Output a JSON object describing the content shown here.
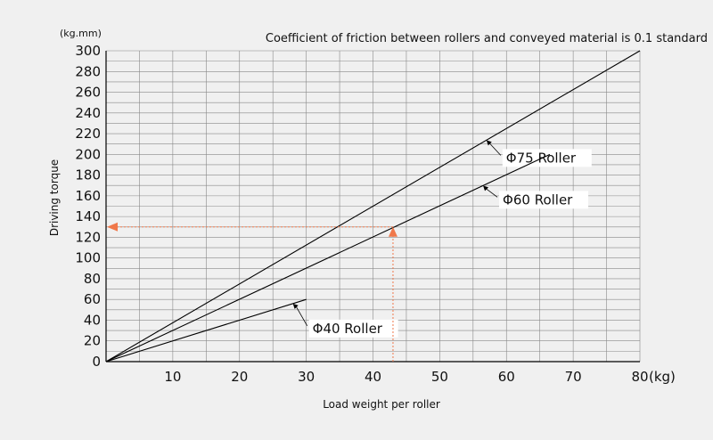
{
  "chart_data": {
    "type": "line",
    "title": "Coefficient of friction between rollers and conveyed material is 0.1 standard",
    "xlabel": "Load weight per roller",
    "ylabel": "Driving torque",
    "y_unit": "(kg.mm)",
    "x_unit": "(kg)",
    "xlim": [
      0,
      80
    ],
    "ylim": [
      0,
      300
    ],
    "x_ticks": [
      10,
      20,
      30,
      40,
      50,
      60,
      70,
      80
    ],
    "x_tick_labels": [
      "10",
      "20",
      "30",
      "40",
      "50",
      "60",
      "70",
      "80"
    ],
    "y_ticks": [
      0,
      20,
      40,
      60,
      80,
      100,
      120,
      140,
      160,
      180,
      200,
      220,
      240,
      260,
      280,
      300
    ],
    "y_tick_labels": [
      "0",
      "20",
      "40",
      "60",
      "80",
      "100",
      "120",
      "140",
      "160",
      "180",
      "200",
      "220",
      "240",
      "260",
      "280",
      "300"
    ],
    "grid": true,
    "series": [
      {
        "name": "Φ75 Roller",
        "x": [
          0,
          80
        ],
        "y": [
          0,
          300
        ],
        "label_at": [
          57,
          246
        ]
      },
      {
        "name": "Φ60 Roller",
        "x": [
          0,
          66.5
        ],
        "y": [
          0,
          200
        ],
        "label_at": [
          56.5,
          170
        ]
      },
      {
        "name": "Φ40 Roller",
        "x": [
          0,
          30
        ],
        "y": [
          0,
          60
        ],
        "label_at": [
          28,
          48
        ]
      }
    ],
    "annotation": {
      "type": "example-lookup",
      "x": 43,
      "y": 130,
      "color": "#f0784a"
    },
    "colors": {
      "background": "#f0f0f0",
      "grid": "#888888",
      "line": "#000000",
      "annotation": "#f0784a"
    }
  }
}
